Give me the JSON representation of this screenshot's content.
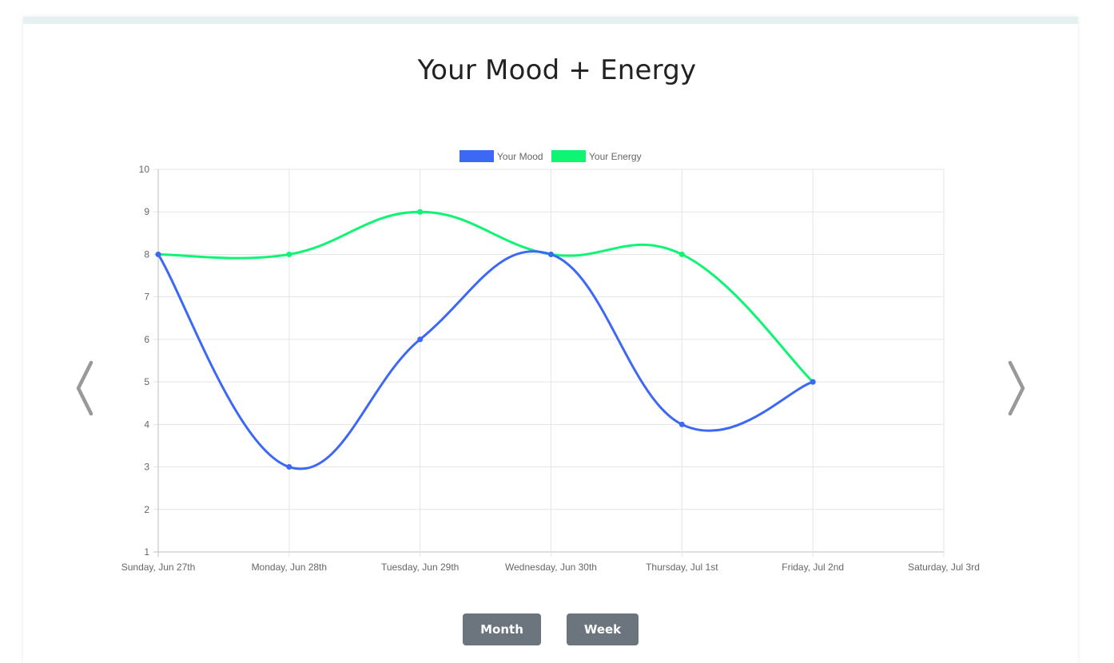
{
  "page": {
    "title": "Your Mood + Energy"
  },
  "controls": {
    "month_label": "Month",
    "week_label": "Week",
    "prev_icon": "chevron-left-icon",
    "next_icon": "chevron-right-icon"
  },
  "colors": {
    "mood": "#3d68f5",
    "energy": "#0df573",
    "grid": "#e5e5e5",
    "axis": "#bdbdbd",
    "arrow": "#999999"
  },
  "chart_data": {
    "type": "line",
    "title": "",
    "xlabel": "",
    "ylabel": "",
    "categories": [
      "Sunday, Jun 27th",
      "Monday, Jun 28th",
      "Tuesday, Jun 29th",
      "Wednesday, Jun 30th",
      "Thursday, Jul 1st",
      "Friday, Jul 2nd",
      "Saturday, Jul 3rd"
    ],
    "ylim": [
      1,
      10
    ],
    "yticks": [
      1,
      2,
      3,
      4,
      5,
      6,
      7,
      8,
      9,
      10
    ],
    "grid": true,
    "legend_position": "top-center",
    "series": [
      {
        "name": "Your Mood",
        "values": [
          8,
          3,
          6,
          8,
          4,
          5,
          null
        ]
      },
      {
        "name": "Your Energy",
        "values": [
          8,
          8,
          9,
          8,
          8,
          5,
          null
        ]
      }
    ]
  }
}
